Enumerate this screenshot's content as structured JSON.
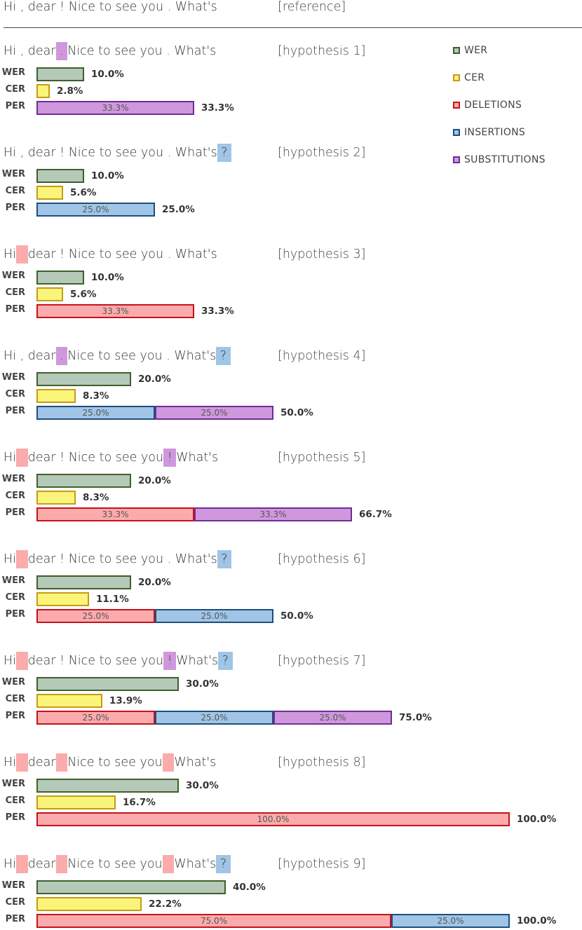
{
  "reference": {
    "tokens": [
      {
        "text": "Hi",
        "hl": ""
      },
      {
        "text": " , ",
        "hl": ""
      },
      {
        "text": "dear",
        "hl": ""
      },
      {
        "text": " ! ",
        "hl": ""
      },
      {
        "text": "Nice to see you",
        "hl": ""
      },
      {
        "text": " . ",
        "hl": ""
      },
      {
        "text": "What's",
        "hl": ""
      }
    ],
    "tag": "[reference]"
  },
  "colors": {
    "WER": {
      "fill": "#b5c9b8",
      "border": "#3f5f2c"
    },
    "CER": {
      "fill": "#fbf47a",
      "border": "#c69b18"
    },
    "DEL": {
      "fill": "#fbabab",
      "border": "#c4121d"
    },
    "INS": {
      "fill": "#a0c5e6",
      "border": "#1d4e7e"
    },
    "SUB": {
      "fill": "#cf98dd",
      "border": "#6f2c97"
    }
  },
  "legend": [
    {
      "key": "WER",
      "label": "WER"
    },
    {
      "key": "CER",
      "label": "CER"
    },
    {
      "key": "DEL",
      "label": "DELETIONS"
    },
    {
      "key": "INS",
      "label": "INSERTIONS"
    },
    {
      "key": "SUB",
      "label": "SUBSTITUTIONS"
    }
  ],
  "metric_labels": {
    "wer": "WER",
    "cer": "CER",
    "per": "PER"
  },
  "chart_data": {
    "type": "bar",
    "orientation": "horizontal",
    "unit": "%",
    "grid": false,
    "legend_position": "top-right",
    "hypotheses": [
      {
        "tag": "[hypothesis 1]",
        "tokens": [
          {
            "text": "Hi",
            "hl": ""
          },
          {
            "text": " , ",
            "hl": ""
          },
          {
            "text": "dear",
            "hl": ""
          },
          {
            "text": " . ",
            "hl": "SUB"
          },
          {
            "text": "Nice to see you",
            "hl": ""
          },
          {
            "text": " . ",
            "hl": ""
          },
          {
            "text": "What's",
            "hl": ""
          }
        ],
        "wer": 10.0,
        "wer_label": "10.0%",
        "cer": 2.8,
        "cer_label": "2.8%",
        "per_segments": [
          {
            "type": "SUB",
            "value": 33.3,
            "label": "33.3%"
          }
        ],
        "per": 33.3,
        "per_label": "33.3%"
      },
      {
        "tag": "[hypothesis 2]",
        "tokens": [
          {
            "text": "Hi",
            "hl": ""
          },
          {
            "text": " , ",
            "hl": ""
          },
          {
            "text": "dear",
            "hl": ""
          },
          {
            "text": " ! ",
            "hl": ""
          },
          {
            "text": "Nice to see you",
            "hl": ""
          },
          {
            "text": " . ",
            "hl": ""
          },
          {
            "text": "What's",
            "hl": ""
          },
          {
            "text": " ? ",
            "hl": "INS"
          }
        ],
        "wer": 10.0,
        "wer_label": "10.0%",
        "cer": 5.6,
        "cer_label": "5.6%",
        "per_segments": [
          {
            "type": "INS",
            "value": 25.0,
            "label": "25.0%"
          }
        ],
        "per": 25.0,
        "per_label": "25.0%"
      },
      {
        "tag": "[hypothesis 3]",
        "tokens": [
          {
            "text": "Hi",
            "hl": ""
          },
          {
            "text": "   ",
            "hl": "DEL"
          },
          {
            "text": "dear",
            "hl": ""
          },
          {
            "text": " ! ",
            "hl": ""
          },
          {
            "text": "Nice to see you",
            "hl": ""
          },
          {
            "text": " . ",
            "hl": ""
          },
          {
            "text": "What's",
            "hl": ""
          }
        ],
        "wer": 10.0,
        "wer_label": "10.0%",
        "cer": 5.6,
        "cer_label": "5.6%",
        "per_segments": [
          {
            "type": "DEL",
            "value": 33.3,
            "label": "33.3%"
          }
        ],
        "per": 33.3,
        "per_label": "33.3%"
      },
      {
        "tag": "[hypothesis 4]",
        "tokens": [
          {
            "text": "Hi",
            "hl": ""
          },
          {
            "text": " , ",
            "hl": ""
          },
          {
            "text": "dear",
            "hl": ""
          },
          {
            "text": " . ",
            "hl": "SUB"
          },
          {
            "text": "Nice to see you",
            "hl": ""
          },
          {
            "text": " . ",
            "hl": ""
          },
          {
            "text": "What's",
            "hl": ""
          },
          {
            "text": " ? ",
            "hl": "INS"
          }
        ],
        "wer": 20.0,
        "wer_label": "20.0%",
        "cer": 8.3,
        "cer_label": "8.3%",
        "per_segments": [
          {
            "type": "INS",
            "value": 25.0,
            "label": "25.0%"
          },
          {
            "type": "SUB",
            "value": 25.0,
            "label": "25.0%"
          }
        ],
        "per": 50.0,
        "per_label": "50.0%"
      },
      {
        "tag": "[hypothesis 5]",
        "tokens": [
          {
            "text": "Hi",
            "hl": ""
          },
          {
            "text": "   ",
            "hl": "DEL"
          },
          {
            "text": "dear",
            "hl": ""
          },
          {
            "text": " ! ",
            "hl": ""
          },
          {
            "text": "Nice to see you",
            "hl": ""
          },
          {
            "text": " ! ",
            "hl": "SUB"
          },
          {
            "text": "What's",
            "hl": ""
          }
        ],
        "wer": 20.0,
        "wer_label": "20.0%",
        "cer": 8.3,
        "cer_label": "8.3%",
        "per_segments": [
          {
            "type": "DEL",
            "value": 33.3,
            "label": "33.3%"
          },
          {
            "type": "SUB",
            "value": 33.3,
            "label": "33.3%"
          }
        ],
        "per": 66.7,
        "per_label": "66.7%"
      },
      {
        "tag": "[hypothesis 6]",
        "tokens": [
          {
            "text": "Hi",
            "hl": ""
          },
          {
            "text": "   ",
            "hl": "DEL"
          },
          {
            "text": "dear",
            "hl": ""
          },
          {
            "text": " ! ",
            "hl": ""
          },
          {
            "text": "Nice to see you",
            "hl": ""
          },
          {
            "text": " . ",
            "hl": ""
          },
          {
            "text": "What's",
            "hl": ""
          },
          {
            "text": " ? ",
            "hl": "INS"
          }
        ],
        "wer": 20.0,
        "wer_label": "20.0%",
        "cer": 11.1,
        "cer_label": "11.1%",
        "per_segments": [
          {
            "type": "DEL",
            "value": 25.0,
            "label": "25.0%"
          },
          {
            "type": "INS",
            "value": 25.0,
            "label": "25.0%"
          }
        ],
        "per": 50.0,
        "per_label": "50.0%"
      },
      {
        "tag": "[hypothesis 7]",
        "tokens": [
          {
            "text": "Hi",
            "hl": ""
          },
          {
            "text": "   ",
            "hl": "DEL"
          },
          {
            "text": "dear",
            "hl": ""
          },
          {
            "text": " ! ",
            "hl": ""
          },
          {
            "text": "Nice to see you",
            "hl": ""
          },
          {
            "text": " ! ",
            "hl": "SUB"
          },
          {
            "text": "What's",
            "hl": ""
          },
          {
            "text": " ? ",
            "hl": "INS"
          }
        ],
        "wer": 30.0,
        "wer_label": "30.0%",
        "cer": 13.9,
        "cer_label": "13.9%",
        "per_segments": [
          {
            "type": "DEL",
            "value": 25.0,
            "label": "25.0%"
          },
          {
            "type": "INS",
            "value": 25.0,
            "label": "25.0%"
          },
          {
            "type": "SUB",
            "value": 25.0,
            "label": "25.0%"
          }
        ],
        "per": 75.0,
        "per_label": "75.0%"
      },
      {
        "tag": "[hypothesis 8]",
        "tokens": [
          {
            "text": "Hi",
            "hl": ""
          },
          {
            "text": "   ",
            "hl": "DEL"
          },
          {
            "text": "dear",
            "hl": ""
          },
          {
            "text": "   ",
            "hl": "DEL"
          },
          {
            "text": "Nice to see you",
            "hl": ""
          },
          {
            "text": "   ",
            "hl": "DEL"
          },
          {
            "text": "What's",
            "hl": ""
          }
        ],
        "wer": 30.0,
        "wer_label": "30.0%",
        "cer": 16.7,
        "cer_label": "16.7%",
        "per_segments": [
          {
            "type": "DEL",
            "value": 100.0,
            "label": "100.0%"
          }
        ],
        "per": 100.0,
        "per_label": "100.0%"
      },
      {
        "tag": "[hypothesis 9]",
        "tokens": [
          {
            "text": "Hi",
            "hl": ""
          },
          {
            "text": "   ",
            "hl": "DEL"
          },
          {
            "text": "dear",
            "hl": ""
          },
          {
            "text": "   ",
            "hl": "DEL"
          },
          {
            "text": "Nice to see you",
            "hl": ""
          },
          {
            "text": "   ",
            "hl": "DEL"
          },
          {
            "text": "What's",
            "hl": ""
          },
          {
            "text": " ? ",
            "hl": "INS"
          }
        ],
        "wer": 40.0,
        "wer_label": "40.0%",
        "cer": 22.2,
        "cer_label": "22.2%",
        "per_segments": [
          {
            "type": "DEL",
            "value": 75.0,
            "label": "75.0%"
          },
          {
            "type": "INS",
            "value": 25.0,
            "label": "25.0%"
          }
        ],
        "per": 100.0,
        "per_label": "100.0%"
      }
    ]
  }
}
